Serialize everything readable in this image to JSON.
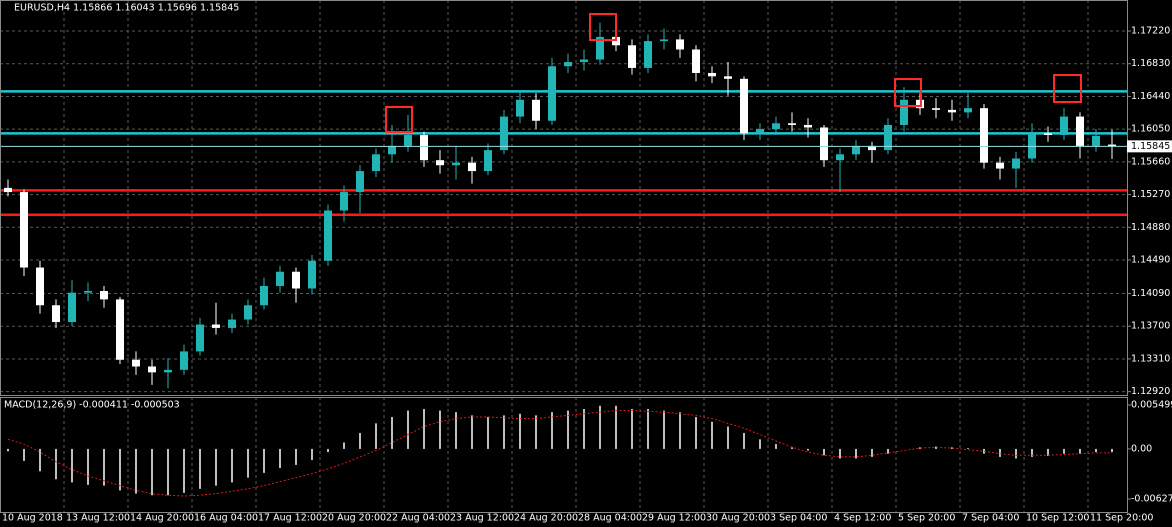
{
  "chart_data": {
    "type": "candlestick",
    "title": "EURUSD,H4  1.15866 1.16043 1.15696 1.15845",
    "categories": [
      "10 Aug 2018",
      null,
      null,
      null,
      "13 Aug 12:00",
      null,
      null,
      null,
      "14 Aug 20:00",
      null,
      null,
      null,
      "16 Aug 04:00",
      null,
      null,
      null,
      "17 Aug 12:00",
      null,
      null,
      null,
      "20 Aug 20:00",
      null,
      null,
      null,
      "22 Aug 04:00",
      null,
      null,
      null,
      "23 Aug 12:00",
      null,
      null,
      null,
      "24 Aug 20:00",
      null,
      null,
      null,
      "28 Aug 04:00",
      null,
      null,
      null,
      "29 Aug 12:00",
      null,
      null,
      null,
      "30 Aug 20:00",
      null,
      null,
      null,
      "3 Sep 04:00",
      null,
      null,
      null,
      "4 Sep 12:00",
      null,
      null,
      null,
      "5 Sep 20:00",
      null,
      null,
      null,
      "7 Sep 04:00",
      null,
      null,
      null,
      "10 Sep 12:00",
      null,
      null,
      null,
      "11 Sep 20:00",
      null
    ],
    "candles": [
      [
        1.1535,
        1.1545,
        1.1525,
        1.153
      ],
      [
        1.153,
        1.1533,
        1.143,
        1.144
      ],
      [
        1.144,
        1.1448,
        1.1385,
        1.1395
      ],
      [
        1.1395,
        1.1402,
        1.1368,
        1.1375
      ],
      [
        1.1375,
        1.1425,
        1.137,
        1.141
      ],
      [
        1.141,
        1.1422,
        1.14,
        1.1412
      ],
      [
        1.1412,
        1.1418,
        1.1392,
        1.1402
      ],
      [
        1.1402,
        1.1405,
        1.1325,
        1.133
      ],
      [
        1.133,
        1.134,
        1.1312,
        1.1322
      ],
      [
        1.1322,
        1.133,
        1.13,
        1.1315
      ],
      [
        1.1315,
        1.1332,
        1.1296,
        1.1318
      ],
      [
        1.1318,
        1.1348,
        1.1312,
        1.134
      ],
      [
        1.134,
        1.138,
        1.1335,
        1.1372
      ],
      [
        1.1372,
        1.1398,
        1.136,
        1.1368
      ],
      [
        1.1368,
        1.1385,
        1.1362,
        1.1378
      ],
      [
        1.1378,
        1.1402,
        1.1372,
        1.1395
      ],
      [
        1.1395,
        1.1428,
        1.139,
        1.1418
      ],
      [
        1.1418,
        1.1442,
        1.141,
        1.1435
      ],
      [
        1.1435,
        1.144,
        1.1398,
        1.1415
      ],
      [
        1.1415,
        1.1455,
        1.1408,
        1.1448
      ],
      [
        1.1448,
        1.1515,
        1.1442,
        1.1508
      ],
      [
        1.1508,
        1.1538,
        1.1495,
        1.153
      ],
      [
        1.153,
        1.1562,
        1.1505,
        1.1555
      ],
      [
        1.1555,
        1.1582,
        1.1548,
        1.1575
      ],
      [
        1.1575,
        1.161,
        1.1565,
        1.1585
      ],
      [
        1.1585,
        1.1622,
        1.1578,
        1.1598
      ],
      [
        1.1598,
        1.1602,
        1.156,
        1.1568
      ],
      [
        1.1568,
        1.158,
        1.1552,
        1.1562
      ],
      [
        1.1562,
        1.1585,
        1.1545,
        1.1565
      ],
      [
        1.1565,
        1.1572,
        1.154,
        1.1555
      ],
      [
        1.1555,
        1.1588,
        1.155,
        1.158
      ],
      [
        1.158,
        1.1628,
        1.1575,
        1.162
      ],
      [
        1.162,
        1.165,
        1.1612,
        1.164
      ],
      [
        1.164,
        1.1648,
        1.1605,
        1.1615
      ],
      [
        1.1615,
        1.169,
        1.161,
        1.168
      ],
      [
        1.168,
        1.1695,
        1.1672,
        1.1685
      ],
      [
        1.1685,
        1.17,
        1.1675,
        1.1688
      ],
      [
        1.1688,
        1.1732,
        1.1682,
        1.1715
      ],
      [
        1.1715,
        1.1725,
        1.1698,
        1.1705
      ],
      [
        1.1705,
        1.1712,
        1.167,
        1.1678
      ],
      [
        1.1678,
        1.1718,
        1.1672,
        1.171
      ],
      [
        1.171,
        1.1725,
        1.17,
        1.1712
      ],
      [
        1.1712,
        1.1718,
        1.169,
        1.17
      ],
      [
        1.17,
        1.1705,
        1.1662,
        1.1672
      ],
      [
        1.1672,
        1.168,
        1.166,
        1.1668
      ],
      [
        1.1668,
        1.1685,
        1.1645,
        1.1665
      ],
      [
        1.1665,
        1.1668,
        1.1592,
        1.16
      ],
      [
        1.16,
        1.1612,
        1.1592,
        1.1605
      ],
      [
        1.1605,
        1.162,
        1.1598,
        1.1612
      ],
      [
        1.1612,
        1.1625,
        1.1602,
        1.161
      ],
      [
        1.161,
        1.1618,
        1.1595,
        1.1607
      ],
      [
        1.1607,
        1.161,
        1.156,
        1.1568
      ],
      [
        1.1568,
        1.1582,
        1.153,
        1.1575
      ],
      [
        1.1575,
        1.1592,
        1.1568,
        1.1585
      ],
      [
        1.1585,
        1.159,
        1.1565,
        1.158
      ],
      [
        1.158,
        1.1618,
        1.1575,
        1.161
      ],
      [
        1.161,
        1.1655,
        1.1602,
        1.164
      ],
      [
        1.164,
        1.1648,
        1.1622,
        1.163
      ],
      [
        1.163,
        1.1642,
        1.1618,
        1.1628
      ],
      [
        1.1628,
        1.164,
        1.1615,
        1.1625
      ],
      [
        1.1625,
        1.1648,
        1.1618,
        1.163
      ],
      [
        1.163,
        1.1635,
        1.1558,
        1.1565
      ],
      [
        1.1565,
        1.1572,
        1.1545,
        1.1558
      ],
      [
        1.1558,
        1.1578,
        1.1535,
        1.157
      ],
      [
        1.157,
        1.1612,
        1.1565,
        1.16
      ],
      [
        1.16,
        1.1608,
        1.159,
        1.1598
      ],
      [
        1.1598,
        1.163,
        1.1592,
        1.162
      ],
      [
        1.162,
        1.1625,
        1.157,
        1.1585
      ],
      [
        1.1585,
        1.1605,
        1.1578,
        1.1597
      ],
      [
        1.15866,
        1.16043,
        1.15696,
        1.15845
      ]
    ],
    "up_color": "#22b5b5",
    "down_color": "#ffffff",
    "ylim": [
      1.1288,
      1.1759
    ],
    "yticks": [
      {
        "value": 1.1722,
        "label": "1.17220"
      },
      {
        "value": 1.1683,
        "label": "1.16830"
      },
      {
        "value": 1.1644,
        "label": "1.16440"
      },
      {
        "value": 1.1605,
        "label": "1.16050"
      },
      {
        "value": 1.1566,
        "label": "1.15660"
      },
      {
        "value": 1.1527,
        "label": "1.15270"
      },
      {
        "value": 1.1488,
        "label": "1.14880"
      },
      {
        "value": 1.1449,
        "label": "1.14490"
      },
      {
        "value": 1.1409,
        "label": "1.14090"
      },
      {
        "value": 1.137,
        "label": "1.13700"
      },
      {
        "value": 1.1331,
        "label": "1.13310"
      },
      {
        "value": 1.1292,
        "label": "1.12920"
      }
    ],
    "grid": true,
    "levels": [
      {
        "value": 1.165,
        "color": "#19c9d4"
      },
      {
        "value": 1.16,
        "color": "#19c9d4"
      },
      {
        "value": 1.1532,
        "color": "#ff1a1a"
      },
      {
        "value": 1.1503,
        "color": "#ff1a1a"
      }
    ],
    "macd": {
      "title": "MACD(12,26,9) -0.000411 -0.000503",
      "color": "#ffffff",
      "signal_color": "#e01818",
      "ylim": [
        -0.0079,
        0.0065
      ],
      "yticks": [
        0.005499,
        {
          "value": 0,
          "label": "0.00"
        },
        -0.006272
      ],
      "values": [
        -0.0003,
        -0.0015,
        -0.0028,
        -0.0038,
        -0.0042,
        -0.0045,
        -0.0046,
        -0.0052,
        -0.0056,
        -0.0058,
        -0.0058,
        -0.0055,
        -0.005,
        -0.0046,
        -0.0042,
        -0.0036,
        -0.003,
        -0.0024,
        -0.002,
        -0.0014,
        -0.0004,
        0.0008,
        0.002,
        0.0032,
        0.004,
        0.0048,
        0.005,
        0.0048,
        0.0046,
        0.0042,
        0.004,
        0.0042,
        0.0044,
        0.0042,
        0.0046,
        0.0048,
        0.005,
        0.0054,
        0.0054,
        0.005,
        0.005,
        0.0048,
        0.0046,
        0.004,
        0.0034,
        0.0028,
        0.002,
        0.0012,
        0.0006,
        0.0002,
        -0.0002,
        -0.0008,
        -0.0012,
        -0.0012,
        -0.001,
        -0.0006,
        0.0,
        0.0002,
        0.0003,
        0.0002,
        0.0001,
        -0.0006,
        -0.001,
        -0.0012,
        -0.001,
        -0.0009,
        -0.0006,
        -0.0006,
        -0.0004,
        -0.000411
      ],
      "signal": [
        0.0012,
        0.0006,
        -0.0004,
        -0.0016,
        -0.0026,
        -0.0034,
        -0.004,
        -0.0046,
        -0.0052,
        -0.0056,
        -0.0058,
        -0.0059,
        -0.0058,
        -0.0056,
        -0.0053,
        -0.005,
        -0.0046,
        -0.0041,
        -0.0036,
        -0.0031,
        -0.0025,
        -0.0018,
        -0.001,
        -0.0002,
        0.0008,
        0.0018,
        0.0028,
        0.0034,
        0.0038,
        0.004,
        0.004,
        0.0039,
        0.0038,
        0.0038,
        0.004,
        0.0042,
        0.0044,
        0.0046,
        0.0048,
        0.0048,
        0.0047,
        0.0046,
        0.0044,
        0.0042,
        0.0038,
        0.0032,
        0.0026,
        0.0018,
        0.001,
        0.0002,
        -0.0004,
        -0.0008,
        -0.001,
        -0.001,
        -0.0008,
        -0.0005,
        -0.0002,
        0.0001,
        0.0002,
        0.0001,
        -0.0001,
        -0.0003,
        -0.0006,
        -0.0008,
        -0.0008,
        -0.0008,
        -0.0007,
        -0.0006,
        -0.0005,
        -0.000503
      ]
    }
  }
}
